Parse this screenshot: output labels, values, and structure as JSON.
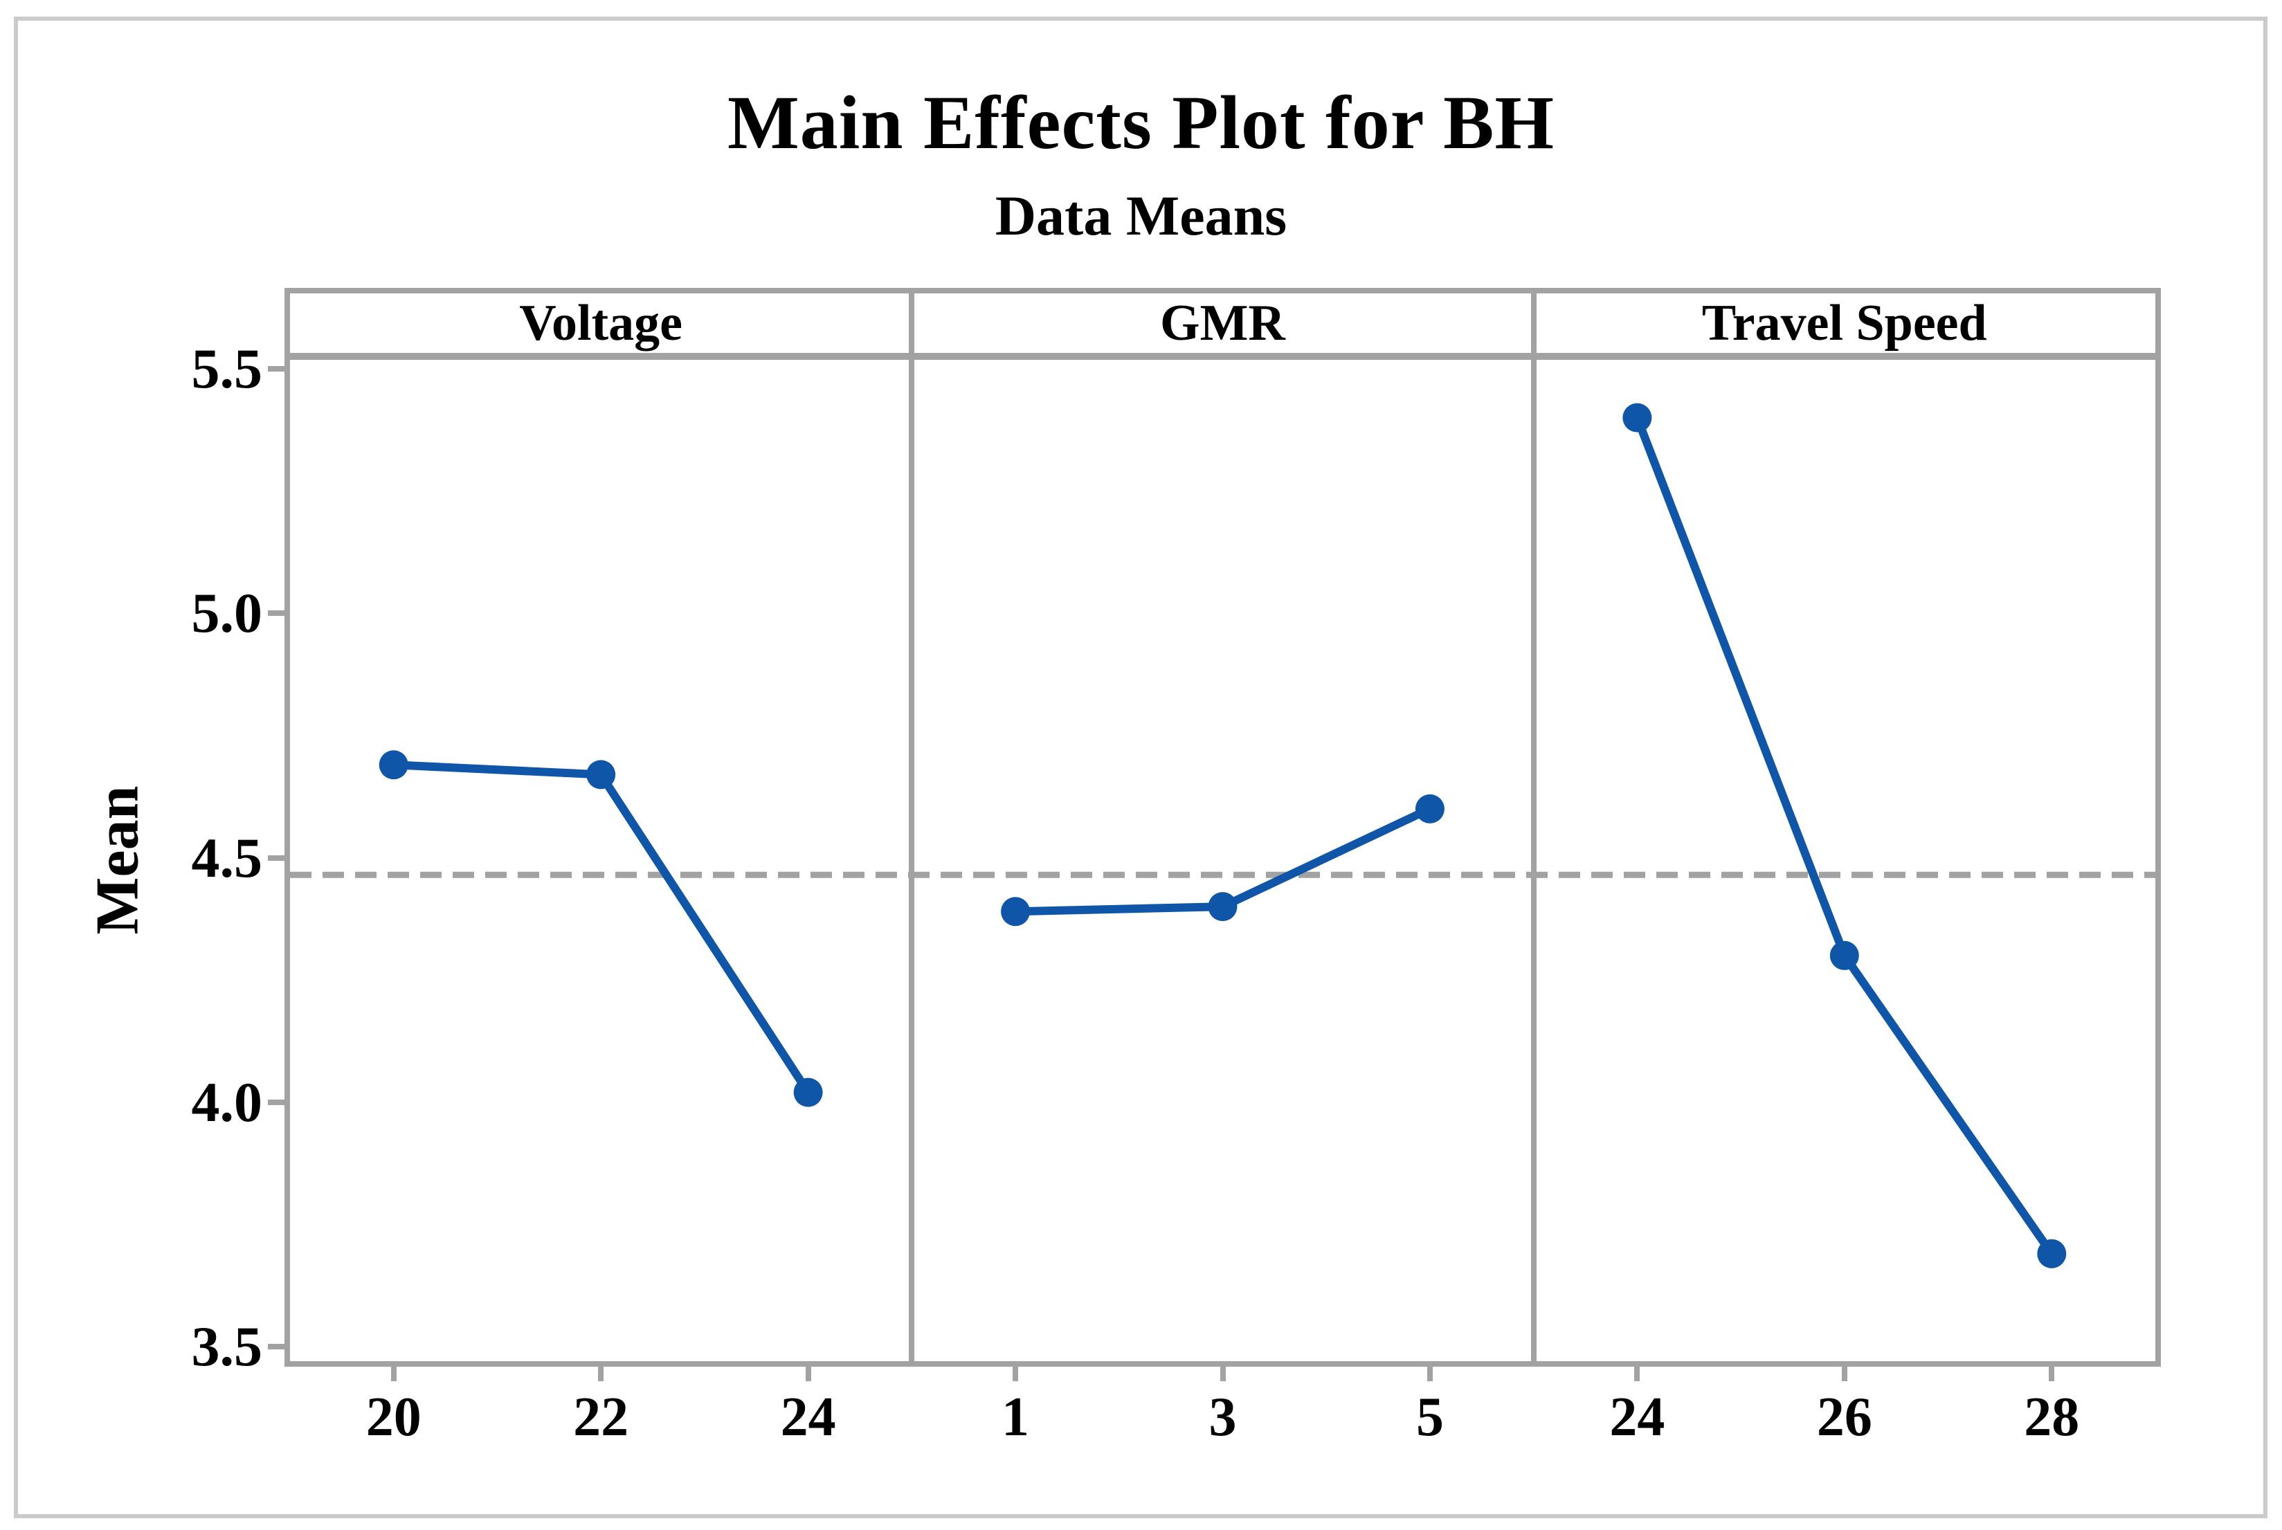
{
  "figure": {
    "title": "Main Effects Plot for BH",
    "subtitle": "Data Means"
  },
  "chart_data": {
    "type": "line",
    "title": "Main Effects Plot for BH",
    "subtitle": "Data Means",
    "ylabel": "Mean",
    "ylim": [
      3.47,
      5.53
    ],
    "yticks": [
      5.5,
      5.0,
      4.5,
      4.0,
      3.5
    ],
    "ytick_labels": [
      "5.5",
      "5.0",
      "4.5",
      "4.0",
      "3.5"
    ],
    "grid": false,
    "legend": "none",
    "reference_line_mean": 4.465,
    "panels": [
      {
        "label": "Voltage",
        "categories": [
          "20",
          "22",
          "24"
        ],
        "values": [
          4.69,
          4.67,
          4.02
        ]
      },
      {
        "label": "GMR",
        "categories": [
          "1",
          "3",
          "5"
        ],
        "values": [
          4.39,
          4.4,
          4.6
        ]
      },
      {
        "label": "Travel Speed",
        "categories": [
          "24",
          "26",
          "28"
        ],
        "values": [
          5.4,
          4.3,
          3.69
        ]
      }
    ],
    "colors": {
      "series": "#0F56A8",
      "frame": "#A2A2A2",
      "reference_line": "#A2A2A2",
      "outer_border": "#CBCBCB",
      "text": "#000000"
    }
  }
}
